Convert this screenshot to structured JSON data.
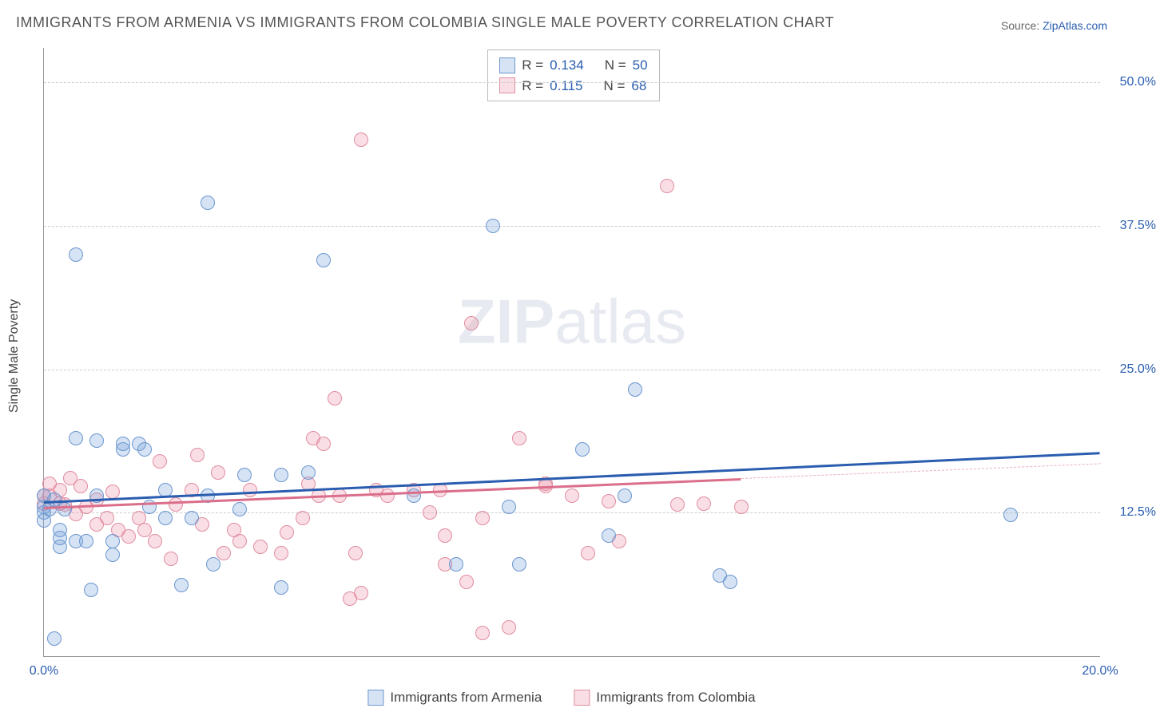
{
  "title": "IMMIGRANTS FROM ARMENIA VS IMMIGRANTS FROM COLOMBIA SINGLE MALE POVERTY CORRELATION CHART",
  "source_label": "Source: ",
  "source_link": "ZipAtlas.com",
  "watermark_a": "ZIP",
  "watermark_b": "atlas",
  "ylabel": "Single Male Poverty",
  "chart": {
    "type": "scatter",
    "xlim": [
      0,
      20
    ],
    "ylim": [
      0,
      53
    ],
    "xticks": [
      {
        "v": 0,
        "label": "0.0%"
      },
      {
        "v": 20,
        "label": "20.0%"
      }
    ],
    "yticks": [
      {
        "v": 12.5,
        "label": "12.5%"
      },
      {
        "v": 25,
        "label": "25.0%"
      },
      {
        "v": 37.5,
        "label": "37.5%"
      },
      {
        "v": 50,
        "label": "50.0%"
      }
    ],
    "plot_bg": "#ffffff",
    "grid_color": "#cccccc",
    "point_radius": 9,
    "point_border": 1.5,
    "series": [
      {
        "name": "Immigrants from Armenia",
        "fill": "rgba(118,162,217,0.30)",
        "stroke": "#6a96cf",
        "trend_color": "#2a5db0",
        "trend_dash_color": "#6a96cf",
        "r": "0.134",
        "n": "50",
        "trend": {
          "x1": 0,
          "y1": 13.5,
          "x2": 20,
          "y2": 17.8,
          "solid_to_x": 20
        },
        "points": [
          [
            0.0,
            12.5
          ],
          [
            0.0,
            13.0
          ],
          [
            0.0,
            14.0
          ],
          [
            0.0,
            11.8
          ],
          [
            0.1,
            12.8
          ],
          [
            0.2,
            1.5
          ],
          [
            0.3,
            9.5
          ],
          [
            0.3,
            11.0
          ],
          [
            0.3,
            10.3
          ],
          [
            0.4,
            12.8
          ],
          [
            0.6,
            35.0
          ],
          [
            0.6,
            19.0
          ],
          [
            0.6,
            10.0
          ],
          [
            0.8,
            10.0
          ],
          [
            0.9,
            5.8
          ],
          [
            1.0,
            18.8
          ],
          [
            1.0,
            14.0
          ],
          [
            1.3,
            10.0
          ],
          [
            1.3,
            8.8
          ],
          [
            1.5,
            18.0
          ],
          [
            1.5,
            18.5
          ],
          [
            1.8,
            18.5
          ],
          [
            1.9,
            18.0
          ],
          [
            2.0,
            13.0
          ],
          [
            2.3,
            12.0
          ],
          [
            2.3,
            14.5
          ],
          [
            2.6,
            6.2
          ],
          [
            2.8,
            12.0
          ],
          [
            3.1,
            39.5
          ],
          [
            3.1,
            14.0
          ],
          [
            3.2,
            8.0
          ],
          [
            3.7,
            12.8
          ],
          [
            3.8,
            15.8
          ],
          [
            4.5,
            6.0
          ],
          [
            4.5,
            15.8
          ],
          [
            5.0,
            16.0
          ],
          [
            5.3,
            34.5
          ],
          [
            7.0,
            14.0
          ],
          [
            7.8,
            8.0
          ],
          [
            8.5,
            37.5
          ],
          [
            8.8,
            13.0
          ],
          [
            9.0,
            8.0
          ],
          [
            10.2,
            18.0
          ],
          [
            10.7,
            10.5
          ],
          [
            11.0,
            14.0
          ],
          [
            11.2,
            23.2
          ],
          [
            12.8,
            7.0
          ],
          [
            13.0,
            6.5
          ],
          [
            18.3,
            12.3
          ],
          [
            0.2,
            13.6
          ]
        ]
      },
      {
        "name": "Immigrants from Colombia",
        "fill": "rgba(235,150,170,0.30)",
        "stroke": "#e18ca0",
        "trend_color": "#db6e8b",
        "trend_dash_color": "#e8aebc",
        "r": "0.115",
        "n": "68",
        "trend": {
          "x1": 0,
          "y1": 13.0,
          "x2": 20,
          "y2": 16.8,
          "solid_to_x": 13.2
        },
        "points": [
          [
            0.0,
            14.0
          ],
          [
            0.0,
            13.3
          ],
          [
            0.1,
            15.0
          ],
          [
            0.1,
            14.0
          ],
          [
            0.3,
            14.5
          ],
          [
            0.3,
            13.3
          ],
          [
            0.4,
            13.2
          ],
          [
            0.5,
            15.5
          ],
          [
            0.6,
            12.4
          ],
          [
            0.7,
            14.8
          ],
          [
            0.8,
            13.0
          ],
          [
            1.0,
            11.5
          ],
          [
            1.0,
            13.6
          ],
          [
            1.2,
            12.0
          ],
          [
            1.3,
            14.3
          ],
          [
            1.4,
            11.0
          ],
          [
            1.6,
            10.4
          ],
          [
            1.8,
            12.0
          ],
          [
            1.9,
            11.0
          ],
          [
            2.1,
            10.0
          ],
          [
            2.2,
            17.0
          ],
          [
            2.4,
            8.5
          ],
          [
            2.5,
            13.2
          ],
          [
            2.8,
            14.5
          ],
          [
            2.9,
            17.5
          ],
          [
            3.0,
            11.5
          ],
          [
            3.3,
            16.0
          ],
          [
            3.4,
            9.0
          ],
          [
            3.6,
            11.0
          ],
          [
            3.7,
            10.0
          ],
          [
            3.9,
            14.5
          ],
          [
            4.1,
            9.5
          ],
          [
            4.5,
            9.0
          ],
          [
            4.6,
            10.8
          ],
          [
            4.9,
            12.0
          ],
          [
            5.0,
            15.0
          ],
          [
            5.1,
            19.0
          ],
          [
            5.2,
            14.0
          ],
          [
            5.3,
            18.5
          ],
          [
            5.5,
            22.5
          ],
          [
            5.6,
            14.0
          ],
          [
            5.8,
            5.0
          ],
          [
            5.9,
            9.0
          ],
          [
            6.0,
            45.0
          ],
          [
            6.0,
            5.5
          ],
          [
            6.3,
            14.5
          ],
          [
            6.5,
            14.0
          ],
          [
            7.0,
            14.5
          ],
          [
            7.3,
            12.5
          ],
          [
            7.5,
            14.5
          ],
          [
            7.6,
            8.0
          ],
          [
            7.6,
            10.5
          ],
          [
            8.0,
            6.5
          ],
          [
            8.1,
            29.0
          ],
          [
            8.3,
            12.0
          ],
          [
            8.3,
            2.0
          ],
          [
            8.8,
            2.5
          ],
          [
            9.0,
            19.0
          ],
          [
            9.5,
            15.0
          ],
          [
            9.5,
            14.8
          ],
          [
            10.0,
            14.0
          ],
          [
            10.9,
            10.0
          ],
          [
            10.3,
            9.0
          ],
          [
            10.7,
            13.5
          ],
          [
            11.8,
            41.0
          ],
          [
            12.0,
            13.2
          ],
          [
            12.5,
            13.3
          ],
          [
            13.2,
            13.0
          ]
        ]
      }
    ]
  },
  "legend_stats_labels": {
    "r": "R =",
    "n": "N ="
  },
  "bottom_legend": [
    "Immigrants from Armenia",
    "Immigrants from Colombia"
  ]
}
